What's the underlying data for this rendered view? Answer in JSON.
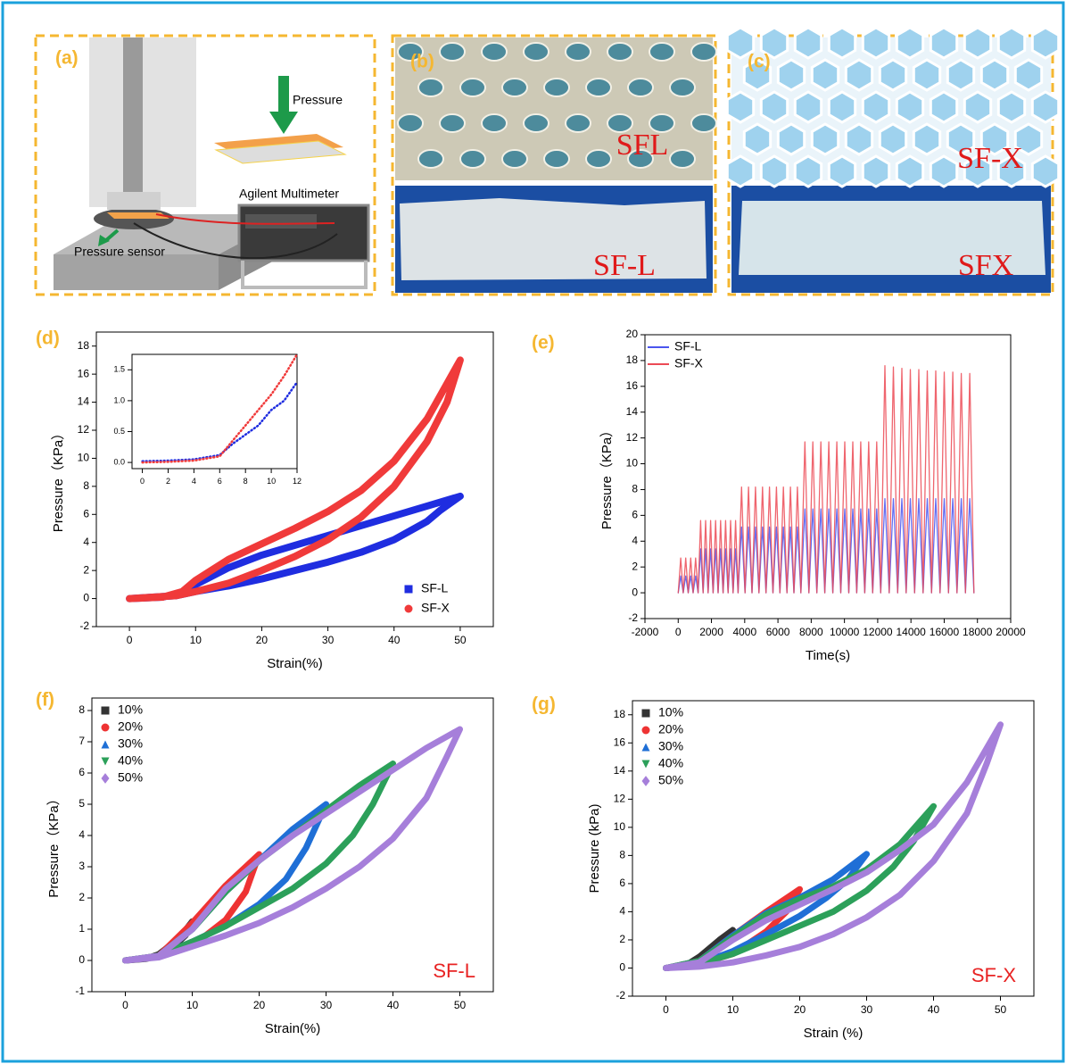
{
  "panels": {
    "a": {
      "label": "(a)",
      "pressure": "Pressure",
      "multimeter": "Agilent Multimeter",
      "sensor": "Pressure sensor"
    },
    "b": {
      "label": "(b)",
      "top": "SFL",
      "bottom": "SF-L"
    },
    "c": {
      "label": "(c)",
      "top": "SF-X",
      "bottom": "SFX"
    }
  },
  "chart_data": [
    {
      "type": "line",
      "label": "(d)",
      "xlabel": "Strain(%)",
      "ylabel": "Pressure（KPa）",
      "legend": "lower right",
      "xlim": [
        -5,
        55
      ],
      "xticks": [
        0,
        10,
        20,
        30,
        40,
        50
      ],
      "ylim": [
        -2,
        19
      ],
      "yticks": [
        -2,
        0,
        2,
        4,
        6,
        8,
        10,
        12,
        14,
        16,
        18
      ],
      "series": [
        {
          "name": "SF-L",
          "color": "#1f2de0",
          "marker": "square",
          "x": [
            0,
            5,
            8,
            10,
            15,
            20,
            25,
            30,
            35,
            40,
            45,
            50,
            47,
            45,
            40,
            35,
            30,
            25,
            20,
            15,
            10,
            7,
            0
          ],
          "values": [
            0,
            0.1,
            0.4,
            1.0,
            2.2,
            3.1,
            3.8,
            4.5,
            5.2,
            5.9,
            6.6,
            7.3,
            6.3,
            5.5,
            4.2,
            3.3,
            2.6,
            2.0,
            1.4,
            0.9,
            0.5,
            0.2,
            0
          ]
        },
        {
          "name": "SF-X",
          "color": "#f03a3a",
          "marker": "circle",
          "x": [
            0,
            5,
            8,
            10,
            15,
            20,
            25,
            30,
            35,
            40,
            45,
            50,
            48,
            45,
            40,
            35,
            30,
            25,
            20,
            15,
            10,
            7,
            0
          ],
          "values": [
            0,
            0.1,
            0.5,
            1.3,
            2.8,
            3.9,
            5.0,
            6.2,
            7.7,
            9.8,
            12.8,
            17.0,
            14.0,
            11.2,
            8.0,
            5.8,
            4.2,
            3.0,
            2.0,
            1.1,
            0.5,
            0.2,
            0
          ]
        }
      ]
    },
    {
      "type": "line",
      "xlim": [
        -0.8,
        12
      ],
      "xticks": [
        0,
        2,
        4,
        6,
        8,
        10,
        12
      ],
      "ylim": [
        -0.1,
        1.75
      ],
      "yticks": [
        {
          "value": 0,
          "label": "0.0"
        },
        0.5,
        {
          "value": 1,
          "label": "1.0"
        },
        1.5
      ],
      "series": [
        {
          "color": "#1f2de0",
          "x": [
            0,
            2,
            4,
            6,
            7,
            8,
            9,
            10,
            11,
            12
          ],
          "values": [
            0.02,
            0.03,
            0.05,
            0.12,
            0.3,
            0.45,
            0.6,
            0.85,
            1.0,
            1.3
          ]
        },
        {
          "color": "#f03a3a",
          "x": [
            0,
            2,
            4,
            6,
            7,
            8,
            9,
            10,
            11,
            12
          ],
          "values": [
            0,
            0.01,
            0.03,
            0.1,
            0.35,
            0.6,
            0.85,
            1.1,
            1.4,
            1.75
          ]
        }
      ]
    },
    {
      "type": "line",
      "label": "(e)",
      "xlabel": "Time(s)",
      "ylabel": "Pressure（KPa）",
      "legend": "upper left",
      "xlim": [
        -2000,
        20000
      ],
      "xticks": [
        -2000,
        0,
        2000,
        4000,
        6000,
        8000,
        10000,
        12000,
        14000,
        16000,
        18000,
        20000
      ],
      "ylim": [
        -2,
        20
      ],
      "yticks": [
        -2,
        0,
        2,
        4,
        6,
        8,
        10,
        12,
        14,
        16,
        18,
        20
      ],
      "x": [
        0,
        150,
        300,
        450,
        600,
        750,
        900,
        1050,
        1200,
        1350,
        1500,
        1650,
        1800,
        1950,
        2100,
        2250,
        2400,
        2550,
        2700,
        2850,
        3000,
        3150,
        3300,
        3450,
        3600,
        3810,
        4020,
        4230,
        4440,
        4650,
        4860,
        5070,
        5280,
        5490,
        5700,
        5910,
        6120,
        6330,
        6540,
        6750,
        6960,
        7170,
        7380,
        7620,
        7860,
        8100,
        8340,
        8580,
        8820,
        9060,
        9300,
        9540,
        9780,
        10020,
        10260,
        10500,
        10740,
        10980,
        11220,
        11460,
        11700,
        11940,
        12180,
        12435,
        12690,
        12945,
        13200,
        13455,
        13710,
        13965,
        14220,
        14475,
        14730,
        14985,
        15240,
        15495,
        15750,
        16005,
        16260,
        16515,
        16770,
        17025,
        17280,
        17535,
        17790
      ],
      "series": [
        {
          "name": "SF-L",
          "color": "#4a55ee",
          "values": [
            0,
            1.3,
            0,
            1.3,
            0,
            1.3,
            0,
            1.3,
            0,
            3.4,
            0,
            3.4,
            0,
            3.4,
            0,
            3.4,
            0,
            3.4,
            0,
            3.4,
            0,
            3.4,
            0,
            3.4,
            0,
            5.1,
            0,
            5.1,
            0,
            5.1,
            0,
            5.1,
            0,
            5.1,
            0,
            5.1,
            0,
            5.1,
            0,
            5.1,
            0,
            5.1,
            0,
            6.5,
            0,
            6.5,
            0,
            6.5,
            0,
            6.5,
            0,
            6.5,
            0,
            6.5,
            0,
            6.5,
            0,
            6.5,
            0,
            6.5,
            0,
            6.5,
            0,
            7.3,
            0,
            7.3,
            0,
            7.3,
            0,
            7.3,
            0,
            7.3,
            0,
            7.3,
            0,
            7.3,
            0,
            7.3,
            0,
            7.3,
            0,
            7.3,
            0,
            7.3,
            0
          ]
        },
        {
          "name": "SF-X",
          "color": "#ec4a55",
          "values": [
            0,
            2.7,
            0,
            2.7,
            0,
            2.7,
            0,
            2.7,
            0,
            5.6,
            0,
            5.6,
            0,
            5.6,
            0,
            5.6,
            0,
            5.6,
            0,
            5.6,
            0,
            5.6,
            0,
            5.6,
            0,
            8.2,
            0,
            8.2,
            0,
            8.2,
            0,
            8.2,
            0,
            8.2,
            0,
            8.2,
            0,
            8.2,
            0,
            8.2,
            0,
            8.2,
            0,
            11.7,
            0,
            11.7,
            0,
            11.7,
            0,
            11.7,
            0,
            11.7,
            0,
            11.7,
            0,
            11.7,
            0,
            11.7,
            0,
            11.7,
            0,
            11.7,
            0,
            17.6,
            0,
            17.5,
            0,
            17.4,
            0,
            17.3,
            0,
            17.3,
            0,
            17.2,
            0,
            17.2,
            0,
            17.1,
            0,
            17.1,
            0,
            17.0,
            0,
            17.0,
            0
          ]
        }
      ]
    },
    {
      "type": "line",
      "label": "(f)",
      "xlabel": "Strain(%)",
      "ylabel": "Pressure（KPa）",
      "annotation": "SF-L",
      "legend": "upper left",
      "xlim": [
        -5,
        55
      ],
      "xticks": [
        0,
        10,
        20,
        30,
        40,
        50
      ],
      "ylim": [
        -1,
        8.4
      ],
      "yticks": [
        -1,
        0,
        1,
        2,
        3,
        4,
        5,
        6,
        7,
        8
      ],
      "series": [
        {
          "name": "10%",
          "color": "#333333",
          "marker": "square",
          "x": [
            0,
            3,
            5,
            8,
            10,
            9,
            7,
            5,
            3,
            0
          ],
          "values": [
            0,
            0.05,
            0.2,
            0.7,
            1.25,
            0.8,
            0.4,
            0.15,
            0.05,
            0
          ]
        },
        {
          "name": "20%",
          "color": "#ee3333",
          "marker": "circle",
          "x": [
            0,
            5,
            10,
            15,
            20,
            18,
            15,
            12,
            10,
            5,
            0
          ],
          "values": [
            0,
            0.15,
            1.2,
            2.4,
            3.4,
            2.2,
            1.3,
            0.8,
            0.55,
            0.15,
            0
          ]
        },
        {
          "name": "30%",
          "color": "#1f6fd6",
          "marker": "triangle-up",
          "x": [
            0,
            5,
            10,
            15,
            20,
            25,
            30,
            27,
            24,
            20,
            15,
            10,
            5,
            0
          ],
          "values": [
            0,
            0.15,
            1.0,
            2.2,
            3.2,
            4.2,
            5.0,
            3.6,
            2.6,
            1.8,
            1.1,
            0.6,
            0.15,
            0
          ]
        },
        {
          "name": "40%",
          "color": "#2ca05a",
          "marker": "triangle-down",
          "x": [
            0,
            5,
            10,
            15,
            20,
            25,
            30,
            35,
            40,
            37,
            34,
            30,
            25,
            20,
            15,
            10,
            5,
            0
          ],
          "values": [
            0,
            0.15,
            1.0,
            2.2,
            3.2,
            4.0,
            4.8,
            5.6,
            6.3,
            5.0,
            4.0,
            3.1,
            2.3,
            1.7,
            1.1,
            0.6,
            0.15,
            0
          ]
        },
        {
          "name": "50%",
          "color": "#a67fda",
          "marker": "diamond",
          "x": [
            0,
            5,
            10,
            15,
            20,
            25,
            30,
            35,
            40,
            45,
            50,
            48,
            45,
            40,
            35,
            30,
            25,
            20,
            15,
            10,
            5,
            0
          ],
          "values": [
            0,
            0.15,
            1.0,
            2.3,
            3.2,
            4.0,
            4.7,
            5.4,
            6.1,
            6.8,
            7.4,
            6.5,
            5.2,
            3.9,
            3.0,
            2.3,
            1.7,
            1.2,
            0.8,
            0.45,
            0.1,
            0
          ]
        }
      ]
    },
    {
      "type": "line",
      "label": "(g)",
      "xlabel": "Strain (%)",
      "ylabel": "Pressure (kPa)",
      "annotation": "SF-X",
      "legend": "upper left",
      "xlim": [
        -5,
        55
      ],
      "xticks": [
        0,
        10,
        20,
        30,
        40,
        50
      ],
      "ylim": [
        -2,
        19
      ],
      "yticks": [
        -2,
        0,
        2,
        4,
        6,
        8,
        10,
        12,
        14,
        16,
        18
      ],
      "series": [
        {
          "name": "10%",
          "color": "#333333",
          "marker": "square",
          "x": [
            0,
            3,
            5,
            8,
            10,
            8,
            5,
            3,
            0
          ],
          "values": [
            0,
            0.2,
            0.8,
            2.0,
            2.7,
            1.6,
            0.6,
            0.2,
            0
          ]
        },
        {
          "name": "20%",
          "color": "#ee3333",
          "marker": "circle",
          "x": [
            0,
            5,
            10,
            15,
            20,
            18,
            15,
            10,
            5,
            0
          ],
          "values": [
            0,
            0.5,
            2.3,
            4.0,
            5.6,
            4.0,
            2.6,
            1.0,
            0.3,
            0
          ]
        },
        {
          "name": "30%",
          "color": "#1f6fd6",
          "marker": "triangle-up",
          "x": [
            0,
            5,
            10,
            15,
            20,
            25,
            30,
            27,
            24,
            20,
            15,
            10,
            5,
            0
          ],
          "values": [
            0,
            0.5,
            2.3,
            3.9,
            5.0,
            6.3,
            8.1,
            6.2,
            5.0,
            3.7,
            2.4,
            1.2,
            0.3,
            0
          ]
        },
        {
          "name": "40%",
          "color": "#2ca05a",
          "marker": "triangle-down",
          "x": [
            0,
            5,
            10,
            15,
            20,
            25,
            30,
            35,
            40,
            37,
            34,
            30,
            25,
            20,
            15,
            10,
            5,
            0
          ],
          "values": [
            0,
            0.5,
            2.2,
            3.8,
            4.9,
            5.8,
            7.0,
            8.8,
            11.5,
            9.0,
            7.2,
            5.5,
            4.0,
            3.0,
            2.0,
            1.0,
            0.3,
            0
          ]
        },
        {
          "name": "50%",
          "color": "#a67fda",
          "marker": "diamond",
          "x": [
            0,
            5,
            10,
            15,
            20,
            25,
            30,
            35,
            40,
            45,
            50,
            48,
            45,
            40,
            35,
            30,
            25,
            20,
            15,
            10,
            5,
            0
          ],
          "values": [
            0,
            0.4,
            2.0,
            3.4,
            4.5,
            5.6,
            6.8,
            8.4,
            10.2,
            13.2,
            17.3,
            14.6,
            11.0,
            7.6,
            5.2,
            3.6,
            2.4,
            1.5,
            0.9,
            0.4,
            0.1,
            0
          ]
        }
      ]
    }
  ]
}
